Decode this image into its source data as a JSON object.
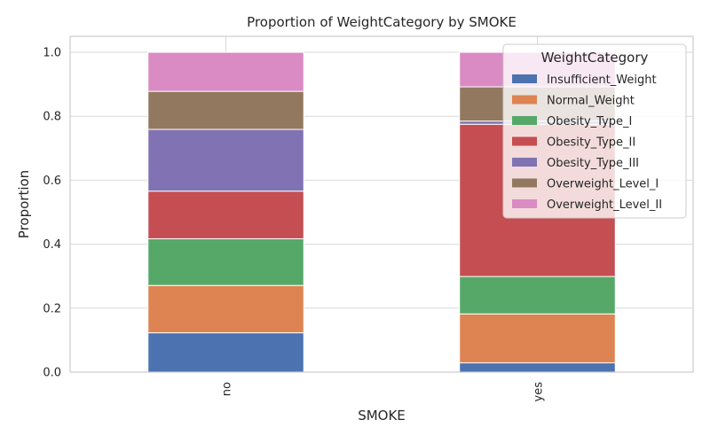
{
  "chart_data": {
    "type": "bar",
    "stacked": true,
    "title": "Proportion of WeightCategory by SMOKE",
    "xlabel": "SMOKE",
    "ylabel": "Proportion",
    "categories": [
      "no",
      "yes"
    ],
    "ylim": [
      0,
      1.05
    ],
    "yticks": [
      "0.0",
      "0.2",
      "0.4",
      "0.6",
      "0.8",
      "1.0"
    ],
    "ytick_values": [
      0.0,
      0.2,
      0.4,
      0.6,
      0.8,
      1.0
    ],
    "grid": true,
    "legend_title": "WeightCategory",
    "legend_position": "top-right",
    "series": [
      {
        "name": "Insufficient_Weight",
        "color": "#4c72b0",
        "values": [
          0.123,
          0.029
        ]
      },
      {
        "name": "Normal_Weight",
        "color": "#dd8452",
        "values": [
          0.148,
          0.153
        ]
      },
      {
        "name": "Obesity_Type_I",
        "color": "#55a868",
        "values": [
          0.146,
          0.117
        ]
      },
      {
        "name": "Obesity_Type_II",
        "color": "#c44e52",
        "values": [
          0.149,
          0.476
        ]
      },
      {
        "name": "Obesity_Type_III",
        "color": "#8172b3",
        "values": [
          0.193,
          0.01
        ]
      },
      {
        "name": "Overweight_Level_I",
        "color": "#937860",
        "values": [
          0.119,
          0.107
        ]
      },
      {
        "name": "Overweight_Level_II",
        "color": "#da8bc3",
        "values": [
          0.122,
          0.108
        ]
      }
    ]
  }
}
